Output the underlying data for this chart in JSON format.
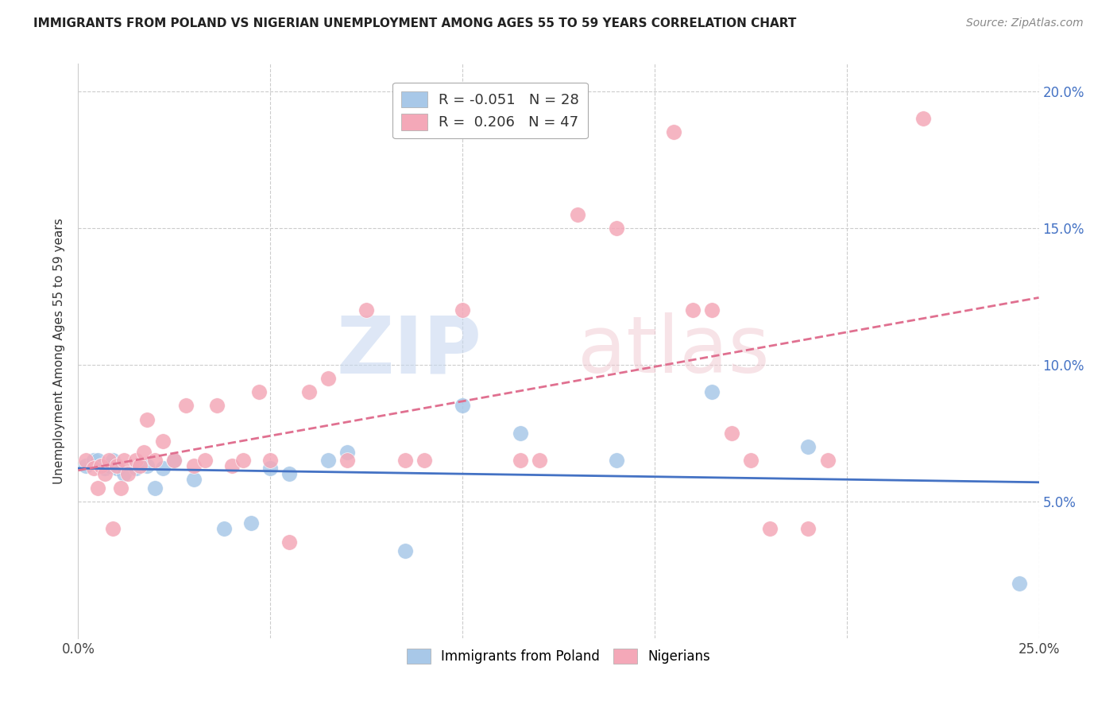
{
  "title": "IMMIGRANTS FROM POLAND VS NIGERIAN UNEMPLOYMENT AMONG AGES 55 TO 59 YEARS CORRELATION CHART",
  "source": "Source: ZipAtlas.com",
  "ylabel": "Unemployment Among Ages 55 to 59 years",
  "xlim": [
    0.0,
    0.25
  ],
  "ylim": [
    0.0,
    0.21
  ],
  "poland_color": "#a8c8e8",
  "nigerian_color": "#f4a8b8",
  "poland_line_color": "#4472c4",
  "nigerian_line_color": "#e07090",
  "poland_scatter_x": [
    0.002,
    0.004,
    0.005,
    0.006,
    0.007,
    0.008,
    0.009,
    0.01,
    0.012,
    0.015,
    0.018,
    0.02,
    0.022,
    0.025,
    0.03,
    0.038,
    0.045,
    0.05,
    0.055,
    0.065,
    0.07,
    0.085,
    0.1,
    0.115,
    0.14,
    0.165,
    0.19,
    0.245
  ],
  "poland_scatter_y": [
    0.063,
    0.065,
    0.065,
    0.063,
    0.062,
    0.063,
    0.065,
    0.062,
    0.06,
    0.062,
    0.063,
    0.055,
    0.062,
    0.065,
    0.058,
    0.04,
    0.042,
    0.062,
    0.06,
    0.065,
    0.068,
    0.032,
    0.085,
    0.075,
    0.065,
    0.09,
    0.07,
    0.02
  ],
  "nigerian_scatter_x": [
    0.002,
    0.004,
    0.005,
    0.006,
    0.007,
    0.008,
    0.009,
    0.01,
    0.011,
    0.012,
    0.013,
    0.015,
    0.016,
    0.017,
    0.018,
    0.02,
    0.022,
    0.025,
    0.028,
    0.03,
    0.033,
    0.036,
    0.04,
    0.043,
    0.047,
    0.05,
    0.055,
    0.06,
    0.065,
    0.07,
    0.075,
    0.085,
    0.09,
    0.1,
    0.115,
    0.12,
    0.13,
    0.14,
    0.155,
    0.16,
    0.165,
    0.17,
    0.175,
    0.18,
    0.19,
    0.195,
    0.22
  ],
  "nigerian_scatter_y": [
    0.065,
    0.062,
    0.055,
    0.063,
    0.06,
    0.065,
    0.04,
    0.063,
    0.055,
    0.065,
    0.06,
    0.065,
    0.063,
    0.068,
    0.08,
    0.065,
    0.072,
    0.065,
    0.085,
    0.063,
    0.065,
    0.085,
    0.063,
    0.065,
    0.09,
    0.065,
    0.035,
    0.09,
    0.095,
    0.065,
    0.12,
    0.065,
    0.065,
    0.12,
    0.065,
    0.065,
    0.155,
    0.15,
    0.185,
    0.12,
    0.12,
    0.075,
    0.065,
    0.04,
    0.04,
    0.065,
    0.19
  ]
}
